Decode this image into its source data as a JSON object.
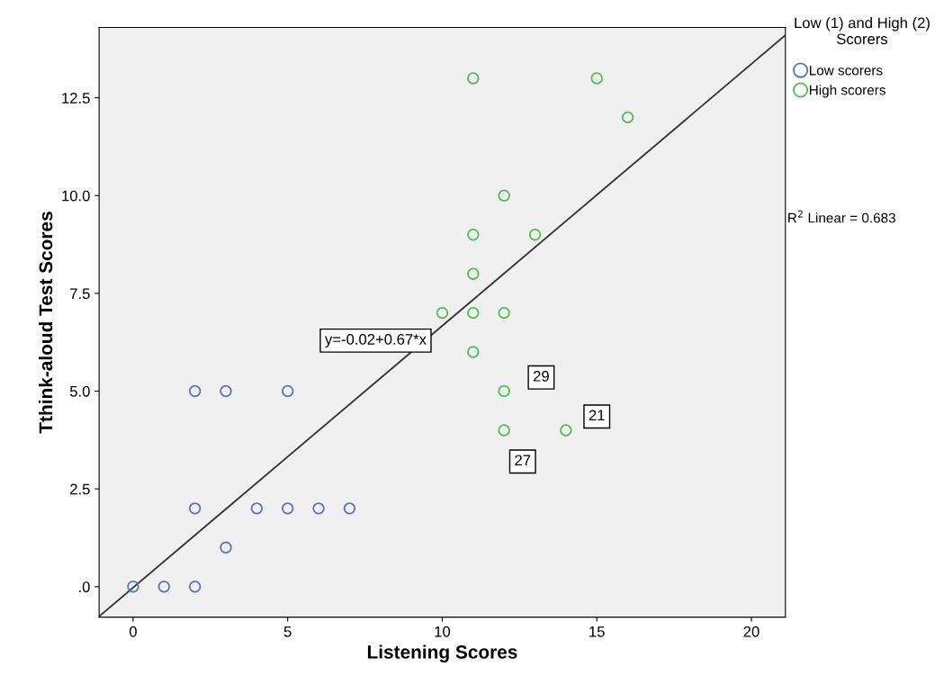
{
  "chart_data": {
    "type": "scatter",
    "xlabel": "Listening Scores",
    "ylabel": "Tthink-aloud Test Scores",
    "legend_title": "Low (1) and High (2) Scorers",
    "legend": "top right",
    "marker": "circle",
    "grid": false,
    "xlim": [
      -1.1,
      21.1
    ],
    "ylim": [
      -0.78,
      14.3
    ],
    "xticks": [
      0,
      5,
      10,
      15,
      20
    ],
    "yticks": [
      {
        "value": 0,
        "label": ".0"
      },
      {
        "value": 2.5,
        "label": "2.5"
      },
      {
        "value": 5,
        "label": "5.0"
      },
      {
        "value": 7.5,
        "label": "7.5"
      },
      {
        "value": 10,
        "label": "10.0"
      },
      {
        "value": 12.5,
        "label": "12.5"
      }
    ],
    "series": [
      {
        "name": "Low scorers",
        "color": "#5b6fc4",
        "x": [
          0,
          1,
          2,
          2,
          3,
          5,
          2,
          4,
          5,
          6,
          7,
          3
        ],
        "values": [
          0,
          0,
          0,
          5,
          5,
          5,
          2,
          2,
          2,
          2,
          2,
          1
        ]
      },
      {
        "name": "High scorers",
        "color": "#4cbf4c",
        "x": [
          11,
          15,
          16,
          12,
          11,
          13,
          11,
          10,
          11,
          12,
          11,
          12,
          12,
          14
        ],
        "values": [
          13,
          13,
          12,
          10,
          9,
          9,
          8,
          7,
          7,
          7,
          6,
          5,
          4,
          4
        ]
      },
      {
        "type": "line",
        "marker": "none",
        "color": "#333333",
        "line_style": "solid",
        "x": [
          -1.1,
          21.1
        ],
        "values": [
          -0.76,
          14.1
        ]
      }
    ],
    "annotations": [
      "y=-0.02+0.67*x",
      {
        "text": "29",
        "x": 13.2,
        "y": 5.35
      },
      {
        "text": "21",
        "x": 15.0,
        "y": 4.35
      },
      {
        "text": "27",
        "x": 12.6,
        "y": 3.2
      },
      "R$^{2}$ Linear = 0.683"
    ]
  }
}
